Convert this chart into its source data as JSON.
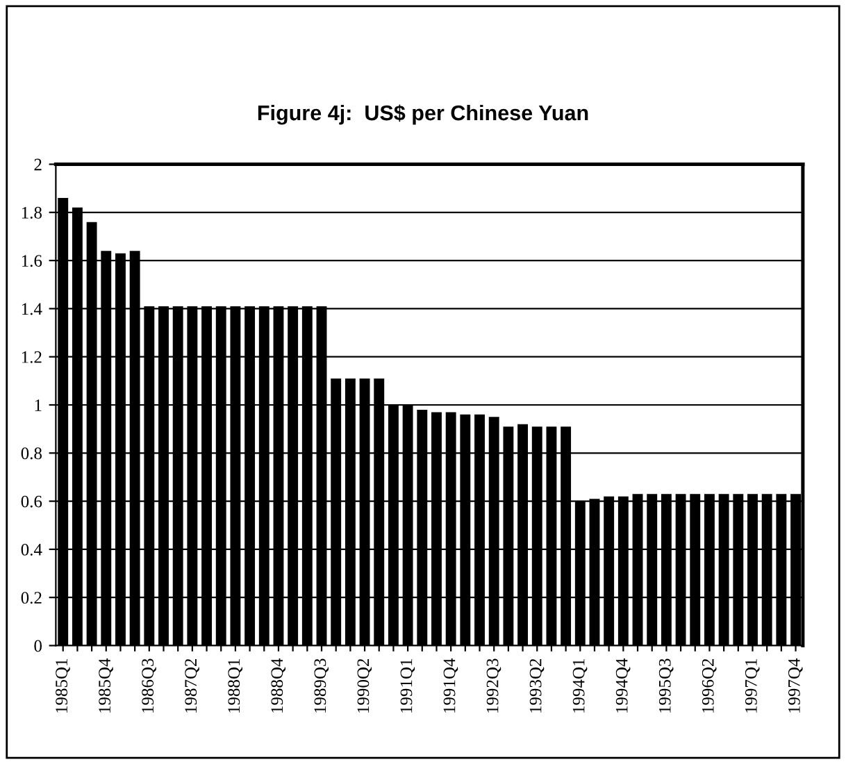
{
  "chart_data": {
    "type": "bar",
    "title": "Figure 4j:  US$ per Chinese Yuan",
    "categories": [
      "1985Q1",
      null,
      null,
      "1985Q4",
      null,
      null,
      "1986Q3",
      null,
      null,
      "1987Q2",
      null,
      null,
      "1988Q1",
      null,
      null,
      "1988Q4",
      null,
      null,
      "1989Q3",
      null,
      null,
      "1990Q2",
      null,
      null,
      "1991Q1",
      null,
      null,
      "1991Q4",
      null,
      null,
      "1992Q3",
      null,
      null,
      "1993Q2",
      null,
      null,
      "1994Q1",
      null,
      null,
      "1994Q4",
      null,
      null,
      "1995Q3",
      null,
      null,
      "1996Q2",
      null,
      null,
      "1997Q1",
      null,
      null,
      "1997Q4"
    ],
    "values": [
      1.86,
      1.82,
      1.76,
      1.64,
      1.63,
      1.64,
      1.41,
      1.41,
      1.41,
      1.41,
      1.41,
      1.41,
      1.41,
      1.41,
      1.41,
      1.41,
      1.41,
      1.41,
      1.41,
      1.11,
      1.11,
      1.11,
      1.11,
      1.0,
      1.0,
      0.98,
      0.97,
      0.97,
      0.96,
      0.96,
      0.95,
      0.91,
      0.92,
      0.91,
      0.91,
      0.91,
      0.6,
      0.61,
      0.62,
      0.62,
      0.63,
      0.63,
      0.63,
      0.63,
      0.63,
      0.63,
      0.63,
      0.63,
      0.63,
      0.63,
      0.63,
      0.63
    ],
    "color": "#000000",
    "ylim": [
      0,
      2
    ],
    "yticks": [
      0,
      0.2,
      0.4,
      0.6,
      0.8,
      1,
      1.2,
      1.4,
      1.6,
      1.8,
      2
    ],
    "grid": "y",
    "legend": false
  }
}
